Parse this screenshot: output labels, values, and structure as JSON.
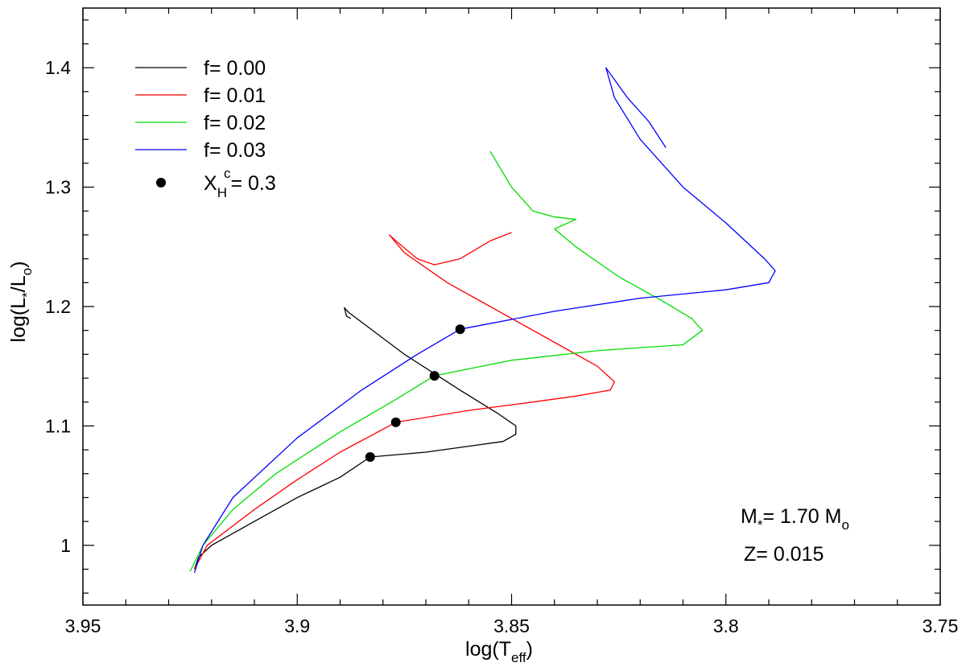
{
  "chart_data": {
    "type": "line",
    "xlabel": {
      "base": "log(T",
      "sub": "eff",
      "tail": ")"
    },
    "ylabel": {
      "base": "log(L",
      "sub1": "*",
      "mid": "/L",
      "sub2": "o",
      "tail": ")"
    },
    "xlim": [
      3.95,
      3.75
    ],
    "ylim": [
      0.95,
      1.45
    ],
    "x_ticks": [
      3.95,
      3.9,
      3.85,
      3.8,
      3.75
    ],
    "x_tick_labels": [
      "3.95",
      "3.9",
      "3.85",
      "3.8",
      "3.75"
    ],
    "y_ticks": [
      1.0,
      1.1,
      1.2,
      1.3,
      1.4
    ],
    "y_tick_labels": [
      "1",
      "1.1",
      "1.2",
      "1.3",
      "1.4"
    ],
    "x_minor_step": 0.01,
    "y_minor_step": 0.02,
    "grid": false,
    "legend_position": "top-left",
    "series": [
      {
        "name": "f= 0.00",
        "color": "#000000",
        "points": [
          [
            3.924,
            0.98
          ],
          [
            3.923,
            0.99
          ],
          [
            3.92,
            1.0
          ],
          [
            3.91,
            1.02
          ],
          [
            3.9,
            1.04
          ],
          [
            3.89,
            1.057
          ],
          [
            3.883,
            1.074
          ],
          [
            3.87,
            1.078
          ],
          [
            3.86,
            1.083
          ],
          [
            3.852,
            1.087
          ],
          [
            3.849,
            1.093
          ],
          [
            3.849,
            1.1
          ],
          [
            3.853,
            1.11
          ],
          [
            3.862,
            1.13
          ],
          [
            3.875,
            1.16
          ],
          [
            3.888,
            1.195
          ],
          [
            3.889,
            1.199
          ],
          [
            3.8885,
            1.192
          ],
          [
            3.8875,
            1.19
          ]
        ]
      },
      {
        "name": "f= 0.01",
        "color": "#ff0000",
        "points": [
          [
            3.924,
            0.98
          ],
          [
            3.921,
            1.0
          ],
          [
            3.91,
            1.03
          ],
          [
            3.9,
            1.055
          ],
          [
            3.89,
            1.078
          ],
          [
            3.877,
            1.103
          ],
          [
            3.86,
            1.113
          ],
          [
            3.845,
            1.12
          ],
          [
            3.835,
            1.125
          ],
          [
            3.827,
            1.13
          ],
          [
            3.826,
            1.137
          ],
          [
            3.83,
            1.15
          ],
          [
            3.84,
            1.17
          ],
          [
            3.855,
            1.2
          ],
          [
            3.865,
            1.22
          ],
          [
            3.875,
            1.245
          ],
          [
            3.8785,
            1.26
          ],
          [
            3.877,
            1.255
          ],
          [
            3.872,
            1.24
          ],
          [
            3.868,
            1.235
          ],
          [
            3.862,
            1.24
          ],
          [
            3.855,
            1.255
          ],
          [
            3.85,
            1.262
          ]
        ]
      },
      {
        "name": "f= 0.02",
        "color": "#00dd00",
        "points": [
          [
            3.925,
            0.978
          ],
          [
            3.922,
            1.0
          ],
          [
            3.915,
            1.03
          ],
          [
            3.905,
            1.06
          ],
          [
            3.89,
            1.095
          ],
          [
            3.878,
            1.12
          ],
          [
            3.868,
            1.142
          ],
          [
            3.85,
            1.155
          ],
          [
            3.83,
            1.163
          ],
          [
            3.81,
            1.168
          ],
          [
            3.8055,
            1.18
          ],
          [
            3.808,
            1.19
          ],
          [
            3.815,
            1.205
          ],
          [
            3.825,
            1.225
          ],
          [
            3.835,
            1.25
          ],
          [
            3.84,
            1.265
          ],
          [
            3.835,
            1.273
          ],
          [
            3.84,
            1.275
          ],
          [
            3.845,
            1.28
          ],
          [
            3.85,
            1.3
          ],
          [
            3.855,
            1.33
          ]
        ]
      },
      {
        "name": "f= 0.03",
        "color": "#0000ff",
        "points": [
          [
            3.924,
            0.977
          ],
          [
            3.922,
            1.0
          ],
          [
            3.915,
            1.04
          ],
          [
            3.9,
            1.09
          ],
          [
            3.885,
            1.13
          ],
          [
            3.872,
            1.16
          ],
          [
            3.862,
            1.181
          ],
          [
            3.84,
            1.196
          ],
          [
            3.82,
            1.207
          ],
          [
            3.8,
            1.214
          ],
          [
            3.79,
            1.22
          ],
          [
            3.7885,
            1.23
          ],
          [
            3.791,
            1.24
          ],
          [
            3.8,
            1.27
          ],
          [
            3.81,
            1.3
          ],
          [
            3.82,
            1.34
          ],
          [
            3.826,
            1.375
          ],
          [
            3.828,
            1.4
          ],
          [
            3.823,
            1.375
          ],
          [
            3.818,
            1.355
          ],
          [
            3.814,
            1.333
          ]
        ]
      }
    ],
    "markers": {
      "name": "X_H^c = 0.3",
      "color": "#000000",
      "points": [
        [
          3.883,
          1.074
        ],
        [
          3.877,
          1.103
        ],
        [
          3.868,
          1.142
        ],
        [
          3.862,
          1.181
        ]
      ]
    },
    "legend": {
      "items": [
        {
          "label": "f= 0.00",
          "kind": "line",
          "color": "#000000"
        },
        {
          "label": "f= 0.01",
          "kind": "line",
          "color": "#ff0000"
        },
        {
          "label": "f= 0.02",
          "kind": "line",
          "color": "#00dd00"
        },
        {
          "label": "f= 0.03",
          "kind": "line",
          "color": "#0000ff"
        },
        {
          "label": "X_H^c = 0.3",
          "kind": "marker",
          "color": "#000000"
        }
      ],
      "marker_label": {
        "base": "X",
        "sub": "H",
        "sup": "c",
        "tail": "= 0.3"
      }
    },
    "annotations": {
      "mass": {
        "base": "M",
        "sub1": "*",
        "mid": "= 1.70 M",
        "sub2": "o"
      },
      "metallicity": "Z= 0.015"
    }
  }
}
